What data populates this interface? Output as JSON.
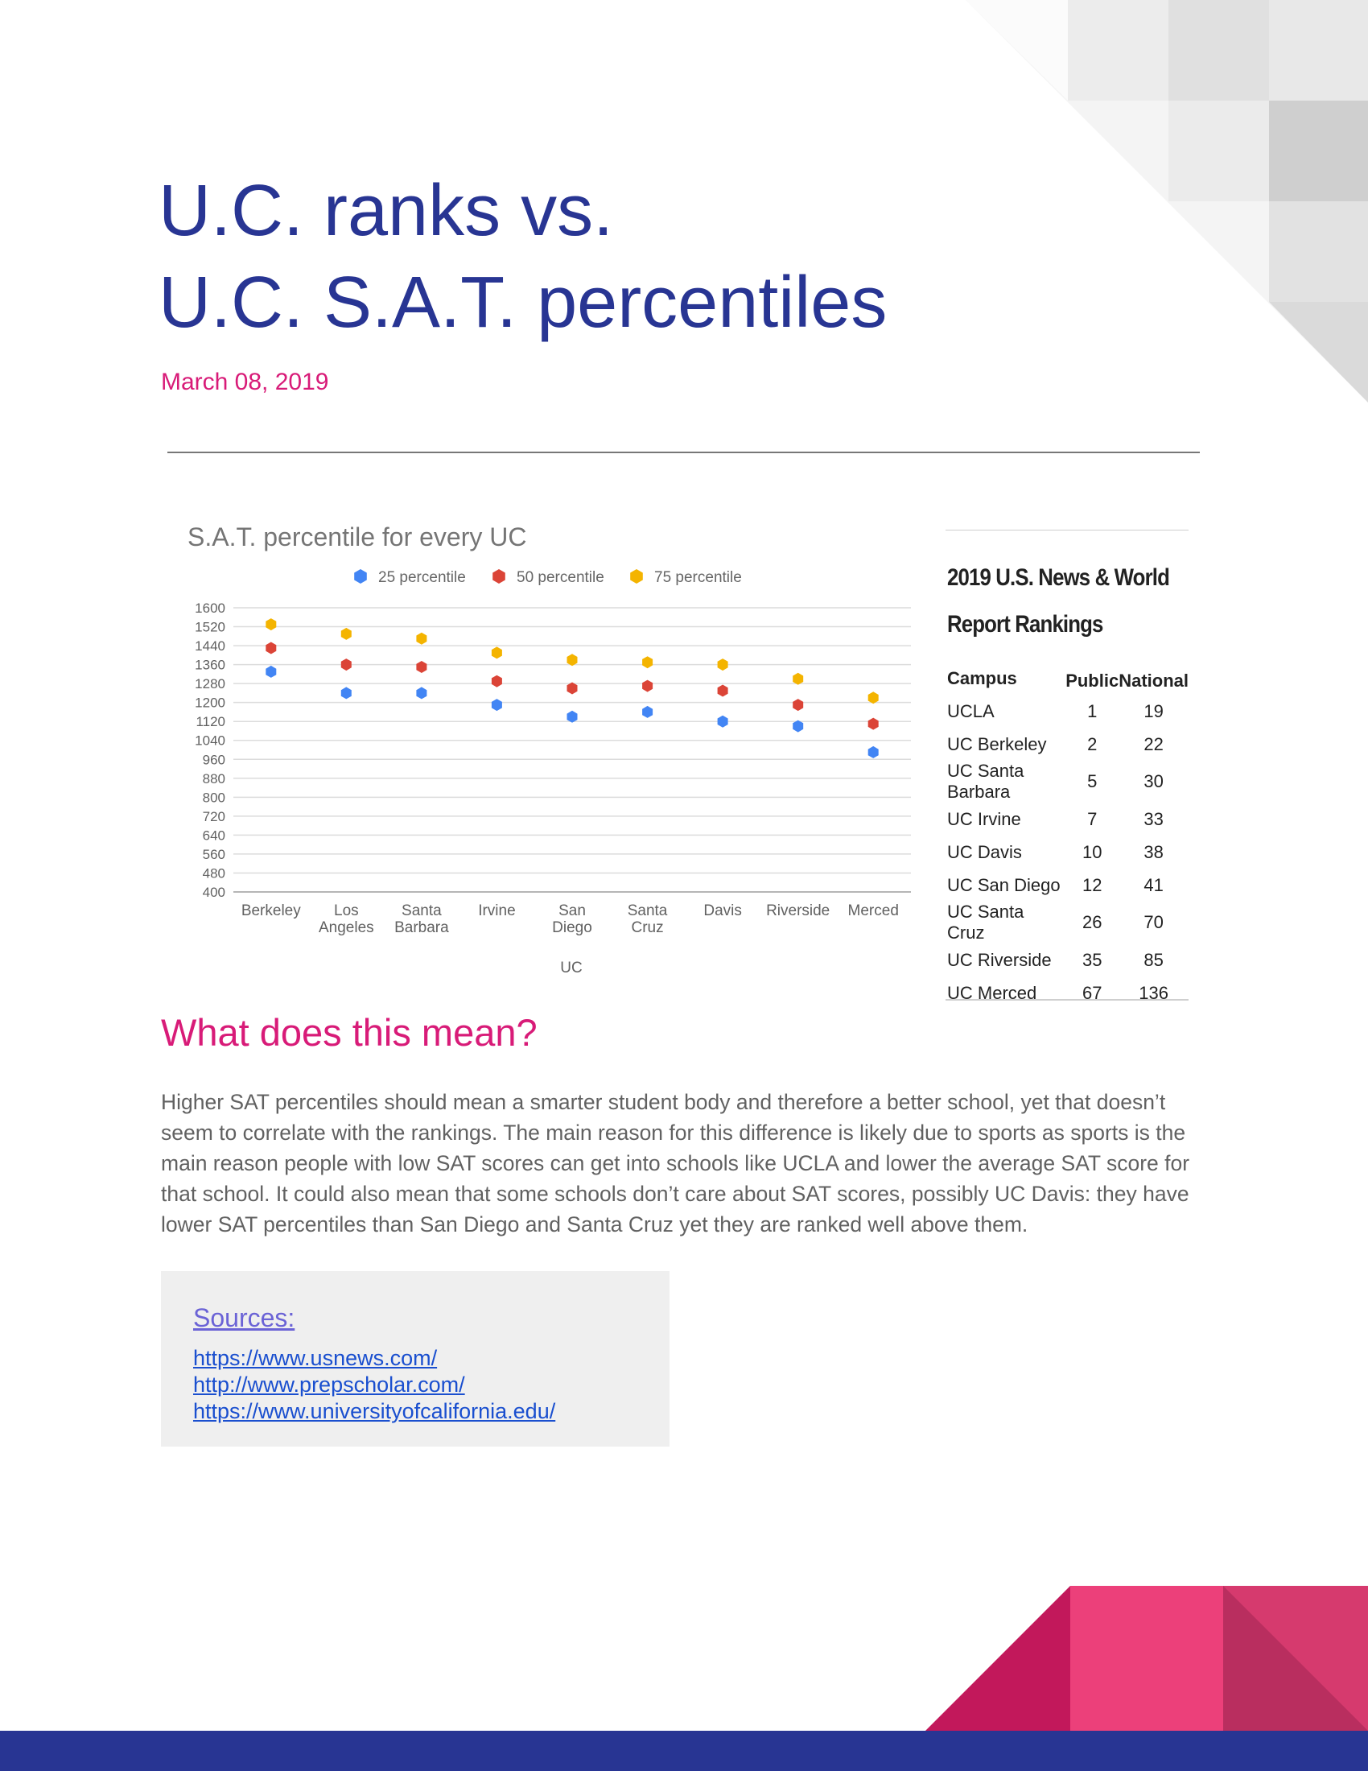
{
  "page": {
    "title_lines": [
      "U.C. ranks vs.",
      "U.C. S.A.T. percentiles"
    ],
    "date": "March 08, 2019"
  },
  "chart_data": {
    "type": "scatter",
    "title": "S.A.T. percentile for every UC",
    "xlabel": "UC",
    "ylabel": "",
    "categories": [
      [
        "Berkeley"
      ],
      [
        "Los",
        "Angeles"
      ],
      [
        "Santa",
        "Barbara"
      ],
      [
        "Irvine"
      ],
      [
        "San",
        "Diego"
      ],
      [
        "Santa",
        "Cruz"
      ],
      [
        "Davis"
      ],
      [
        "Riverside"
      ],
      [
        "Merced"
      ]
    ],
    "ylim": [
      400,
      1600
    ],
    "yticks": [
      400,
      480,
      560,
      640,
      720,
      800,
      880,
      960,
      1040,
      1120,
      1200,
      1280,
      1360,
      1440,
      1520,
      1600
    ],
    "grid": true,
    "legend_position": "top",
    "series": [
      {
        "name": "25 percentile",
        "color": "#4285f4",
        "values": [
          1330,
          1240,
          1240,
          1190,
          1140,
          1160,
          1120,
          1100,
          990
        ]
      },
      {
        "name": "50 percentile",
        "color": "#db4437",
        "values": [
          1430,
          1360,
          1350,
          1290,
          1260,
          1270,
          1250,
          1190,
          1110
        ]
      },
      {
        "name": "75 percentile",
        "color": "#f4b400",
        "values": [
          1530,
          1490,
          1470,
          1410,
          1380,
          1370,
          1360,
          1300,
          1220
        ]
      }
    ]
  },
  "rankings": {
    "title_lines": [
      "2019 U.S. News & World",
      "Report Rankings"
    ],
    "headers": [
      "Campus",
      "Public",
      "National"
    ],
    "rows": [
      {
        "campus": "UCLA",
        "public": "1",
        "national": "19"
      },
      {
        "campus": "UC Berkeley",
        "public": "2",
        "national": "22"
      },
      {
        "campus": "UC Santa Barbara",
        "public": "5",
        "national": "30"
      },
      {
        "campus": "UC Irvine",
        "public": "7",
        "national": "33"
      },
      {
        "campus": "UC Davis",
        "public": "10",
        "national": "38"
      },
      {
        "campus": "UC San Diego",
        "public": "12",
        "national": "41"
      },
      {
        "campus": "UC Santa Cruz",
        "public": "26",
        "national": "70"
      },
      {
        "campus": "UC Riverside",
        "public": "35",
        "national": "85"
      },
      {
        "campus": "UC Merced",
        "public": "67",
        "national": "136"
      }
    ]
  },
  "analysis": {
    "heading": "What does this mean?",
    "paragraph": "Higher SAT percentiles should mean a smarter student body and therefore a better school, yet that doesn’t seem to correlate with the rankings. The main reason for this difference is likely due to sports as sports is the main reason people with low SAT scores can get into schools like UCLA and lower the average SAT score for that school. It could also mean that some schools don’t care about SAT scores, possibly UC Davis: they have lower SAT percentiles than San Diego and Santa Cruz yet they are ranked well above them."
  },
  "sources": {
    "title": "Sources:",
    "links": [
      "https://www.usnews.com/",
      "http://www.prepscholar.com/",
      "https://www.universityofcalifornia.edu/"
    ]
  },
  "colors": {
    "title": "#283593",
    "accent": "#d81b78",
    "footer_bar": "#283593"
  }
}
